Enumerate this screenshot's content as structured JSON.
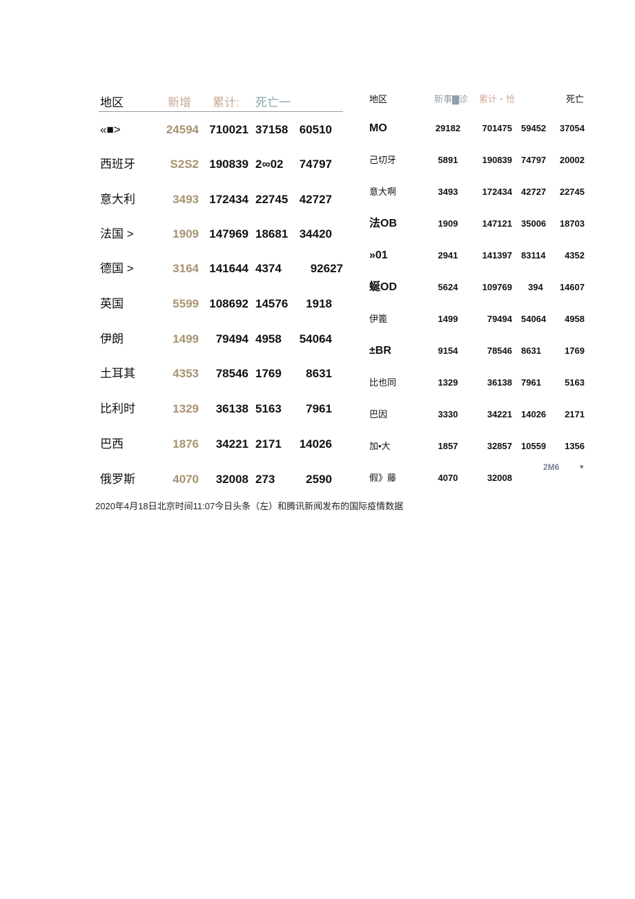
{
  "left_table": {
    "headers": [
      "地区",
      "新增",
      "累计:",
      "死亡一"
    ],
    "header_colors": [
      "#111111",
      "#c9a892",
      "#c9a892",
      "#8fa5b0"
    ],
    "rows": [
      [
        "«■>",
        "24594",
        "710021",
        "37158",
        "60510"
      ],
      [
        "西班牙",
        "S2S2",
        "190839",
        "2∞02",
        "74797"
      ],
      [
        "意大利",
        "3493",
        "172434",
        "22745",
        "42727"
      ],
      [
        "法国 >",
        "1909",
        "147969",
        "18681",
        "34420"
      ],
      [
        "德国 >",
        "3164",
        "141644",
        "4374",
        "92627"
      ],
      [
        "英国",
        "5599",
        "108692",
        "14576",
        "1918"
      ],
      [
        "伊朗",
        "1499",
        "79494",
        "4958",
        "54064"
      ],
      [
        "土耳其",
        "4353",
        "78546",
        "1769",
        "8631"
      ],
      [
        "比利时",
        "1329",
        "36138",
        "5163",
        "7961"
      ],
      [
        "巴西",
        "1876",
        "34221",
        "2171",
        "14026"
      ],
      [
        "俄罗斯",
        "4070",
        "32008",
        "273",
        "2590"
      ]
    ]
  },
  "right_table": {
    "headers": [
      "地区",
      "新事▇诊",
      "累计・怆",
      "死亡"
    ],
    "header_colors": [
      "#111111",
      "#8fa0ad",
      "#d0a898",
      "#111111"
    ],
    "rows": [
      [
        "MO",
        "29182",
        "701475",
        "59452",
        "37054"
      ],
      [
        "己切牙",
        "5891",
        "190839",
        "74797",
        "20002"
      ],
      [
        "意大啊",
        "3493",
        "172434",
        "42727",
        "22745"
      ],
      [
        "法OB",
        "1909",
        "147121",
        "35006",
        "18703"
      ],
      [
        "»01",
        "2941",
        "141397",
        "83114",
        "4352"
      ],
      [
        "蜒OD",
        "5624",
        "109769",
        "394",
        "14607"
      ],
      [
        "伊篦",
        "1499",
        "79494",
        "54064",
        "4958"
      ],
      [
        "±BR",
        "9154",
        "78546",
        "8631",
        "1769"
      ],
      [
        "比也同",
        "1329",
        "36138",
        "7961",
        "5163"
      ],
      [
        "巴因",
        "3330",
        "34221",
        "14026",
        "2171"
      ],
      [
        "加•大",
        "1857",
        "32857",
        "10559",
        "1356"
      ],
      [
        "假》藤",
        "4070",
        "32008",
        "",
        ""
      ]
    ],
    "stray_text": "2M6",
    "stray_mark": "■"
  },
  "caption": "2020年4月18日北京时间11:07今日头条（左）和腾讯新闻发布的国际疫情数据"
}
